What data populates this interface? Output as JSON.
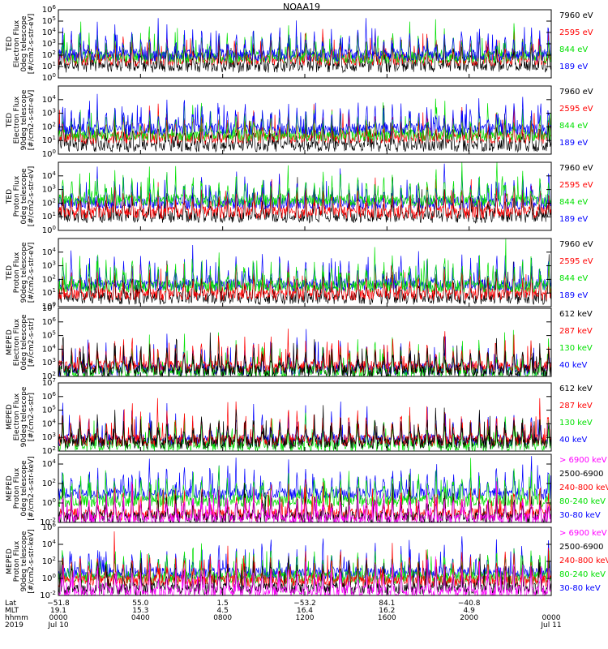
{
  "title": "NOAA19",
  "colors": {
    "black": "#000000",
    "red": "#ff0000",
    "green": "#00e000",
    "blue": "#0000ff",
    "magenta": "#ff00ff"
  },
  "chart_data": [
    {
      "type": "line",
      "ytype": "log",
      "ylim_exp": [
        0,
        6
      ],
      "tick_labels": [
        "10^0",
        "10^1",
        "10^2",
        "10^3",
        "10^4",
        "10^5",
        "10^6"
      ],
      "ylabel_lines": [
        "TED",
        "Electron Flux",
        "0deg telescope",
        "[#/cm2-s-str-eV]"
      ],
      "series": [
        {
          "name": "7960 eV",
          "color": "#000000",
          "base_exp": 1.0,
          "seed": 11
        },
        {
          "name": "2595 eV",
          "color": "#ff0000",
          "base_exp": 1.6,
          "seed": 12
        },
        {
          "name": "844 eV",
          "color": "#00e000",
          "base_exp": 1.8,
          "seed": 13
        },
        {
          "name": "189 eV",
          "color": "#0000ff",
          "base_exp": 2.0,
          "seed": 14
        }
      ]
    },
    {
      "type": "line",
      "ytype": "log",
      "ylim_exp": [
        0,
        5
      ],
      "tick_labels": [
        "10^0",
        "10^1",
        "10^2",
        "10^3",
        "10^4"
      ],
      "ylabel_lines": [
        "TED",
        "Electron Flux",
        "90deg telescope",
        "[#/cm2-s-str-eV]"
      ],
      "series": [
        {
          "name": "7960 eV",
          "color": "#000000",
          "base_exp": 0.6,
          "seed": 21
        },
        {
          "name": "2595 eV",
          "color": "#ff0000",
          "base_exp": 1.2,
          "seed": 22
        },
        {
          "name": "844 eV",
          "color": "#00e000",
          "base_exp": 1.4,
          "seed": 23
        },
        {
          "name": "189 eV",
          "color": "#0000ff",
          "base_exp": 1.8,
          "seed": 24
        }
      ]
    },
    {
      "type": "line",
      "ytype": "log",
      "ylim_exp": [
        0,
        5
      ],
      "tick_labels": [
        "10^0",
        "10^1",
        "10^2",
        "10^3",
        "10^4"
      ],
      "ylabel_lines": [
        "TED",
        "Proton Flux",
        "0deg telescope",
        "[#/cm2-s-str-eV]"
      ],
      "series": [
        {
          "name": "7960 eV",
          "color": "#000000",
          "base_exp": 1.0,
          "seed": 31
        },
        {
          "name": "2595 eV",
          "color": "#ff0000",
          "base_exp": 1.3,
          "seed": 32
        },
        {
          "name": "189 eV",
          "color": "#0000ff",
          "base_exp": 2.0,
          "seed": 34
        },
        {
          "name": "844 eV",
          "color": "#00e000",
          "base_exp": 2.2,
          "seed": 33
        }
      ]
    },
    {
      "type": "line",
      "ytype": "log",
      "ylim_exp": [
        0,
        5
      ],
      "tick_labels": [
        "10^0",
        "10^1",
        "10^2",
        "10^3",
        "10^4"
      ],
      "ylabel_lines": [
        "TED",
        "Proton Flux",
        "90deg telescope",
        "[#/cm2-s-str-eV]"
      ],
      "series": [
        {
          "name": "7960 eV",
          "color": "#000000",
          "base_exp": 0.6,
          "seed": 41
        },
        {
          "name": "2595 eV",
          "color": "#ff0000",
          "base_exp": 0.9,
          "seed": 42
        },
        {
          "name": "189 eV",
          "color": "#0000ff",
          "base_exp": 1.6,
          "seed": 44
        },
        {
          "name": "844 eV",
          "color": "#00e000",
          "base_exp": 1.5,
          "seed": 43
        }
      ]
    },
    {
      "type": "line",
      "ytype": "log",
      "ylim_exp": [
        2,
        7
      ],
      "tick_labels": [
        "10^2",
        "10^3",
        "10^4",
        "10^5",
        "10^6",
        "10^7"
      ],
      "ylabel_lines": [
        "MEPED",
        "Electron Flux",
        "0deg telescope",
        "[#/cm2-s-str]"
      ],
      "series": [
        {
          "name": "40 keV",
          "color": "#0000ff",
          "base_exp": 2.5,
          "seed": 54
        },
        {
          "name": "130 keV",
          "color": "#00e000",
          "base_exp": 2.3,
          "seed": 53
        },
        {
          "name": "287 keV",
          "color": "#ff0000",
          "base_exp": 2.7,
          "seed": 52
        },
        {
          "name": "612 keV",
          "color": "#000000",
          "base_exp": 2.4,
          "seed": 51
        }
      ]
    },
    {
      "type": "line",
      "ytype": "log",
      "ylim_exp": [
        2,
        7
      ],
      "tick_labels": [
        "10^2",
        "10^3",
        "10^4",
        "10^5",
        "10^6",
        "10^7"
      ],
      "ylabel_lines": [
        "MEPED",
        "Electron Flux",
        "90deg telescope",
        "[#/cm2-s-str]"
      ],
      "series": [
        {
          "name": "40 keV",
          "color": "#0000ff",
          "base_exp": 2.8,
          "seed": 64
        },
        {
          "name": "130 keV",
          "color": "#00e000",
          "base_exp": 2.4,
          "seed": 63
        },
        {
          "name": "287 keV",
          "color": "#ff0000",
          "base_exp": 2.8,
          "seed": 62
        },
        {
          "name": "612 keV",
          "color": "#000000",
          "base_exp": 2.6,
          "seed": 61
        }
      ]
    },
    {
      "type": "line",
      "ytype": "log",
      "ylim_exp": [
        -2,
        5
      ],
      "tick_labels": [
        "10^-2",
        "10^0",
        "10^2",
        "10^4"
      ],
      "tick_exps": [
        -2,
        0,
        2,
        4
      ],
      "ylabel_lines": [
        "MEPED",
        "Proton Flux",
        "0deg telescope",
        "[#/cm2-s-str-keV]"
      ],
      "series": [
        {
          "name": "30-80 keV",
          "color": "#0000ff",
          "base_exp": 0.9,
          "seed": 74
        },
        {
          "name": "80-240 keV",
          "color": "#00e000",
          "base_exp": 0.2,
          "seed": 73
        },
        {
          "name": "240-800 keV",
          "color": "#ff0000",
          "base_exp": -1.2,
          "seed": 72
        },
        {
          "name": "2500-6900",
          "color": "#000000",
          "base_exp": -1.5,
          "seed": 71
        },
        {
          "name": "> 6900 keV",
          "color": "#ff00ff",
          "base_exp": -1.7,
          "seed": 75
        }
      ]
    },
    {
      "type": "line",
      "ytype": "log",
      "ylim_exp": [
        -2,
        6
      ],
      "tick_labels": [
        "10^-2",
        "10^0",
        "10^2",
        "10^4",
        "10^6"
      ],
      "tick_exps": [
        -2,
        0,
        2,
        4,
        6
      ],
      "ylabel_lines": [
        "MEPED",
        "Proton Flux",
        "90deg telescope",
        "[#/cm2-s-str-keV]"
      ],
      "series": [
        {
          "name": "30-80 keV",
          "color": "#0000ff",
          "base_exp": 0.6,
          "seed": 84
        },
        {
          "name": "80-240 keV",
          "color": "#00e000",
          "base_exp": 0.1,
          "seed": 83
        },
        {
          "name": "240-800 keV",
          "color": "#ff0000",
          "base_exp": -0.3,
          "seed": 82
        },
        {
          "name": "2500-6900",
          "color": "#000000",
          "base_exp": -1.2,
          "seed": 81
        },
        {
          "name": "> 6900 keV",
          "color": "#ff00ff",
          "base_exp": -1.6,
          "seed": 85
        }
      ]
    }
  ],
  "legend_order": [
    [
      "7960 eV",
      "2595 eV",
      "844 eV",
      "189 eV"
    ],
    [
      "7960 eV",
      "2595 eV",
      "844 eV",
      "189 eV"
    ],
    [
      "7960 eV",
      "2595 eV",
      "844 eV",
      "189 eV"
    ],
    [
      "7960 eV",
      "2595 eV",
      "844 eV",
      "189 eV"
    ],
    [
      "612 keV",
      "287 keV",
      "130 keV",
      "40 keV"
    ],
    [
      "612 keV",
      "287 keV",
      "130 keV",
      "40 keV"
    ],
    [
      "> 6900 keV",
      "2500-6900",
      "240-800 keV",
      "80-240 keV",
      "30-80 keV"
    ],
    [
      "> 6900 keV",
      "2500-6900",
      "240-800 keV",
      "80-240 keV",
      "30-80 keV"
    ]
  ],
  "x_axis": {
    "row_labels": [
      "Lat",
      "MLT",
      "hhmm",
      "2019"
    ],
    "ticks": [
      {
        "hour": 0,
        "lat": "−51.8",
        "mlt": "19.1",
        "hhmm": "0000",
        "date": "Jul 10"
      },
      {
        "hour": 4,
        "lat": "55.0",
        "mlt": "15.3",
        "hhmm": "0400",
        "date": ""
      },
      {
        "hour": 8,
        "lat": "1.5",
        "mlt": "4.5",
        "hhmm": "0800",
        "date": ""
      },
      {
        "hour": 12,
        "lat": "−53.2",
        "mlt": "16.4",
        "hhmm": "1200",
        "date": ""
      },
      {
        "hour": 16,
        "lat": "84.1",
        "mlt": "16.2",
        "hhmm": "1600",
        "date": ""
      },
      {
        "hour": 20,
        "lat": "−40.8",
        "mlt": "4.9",
        "hhmm": "2000",
        "date": ""
      },
      {
        "hour": 24,
        "lat": "",
        "mlt": "",
        "hhmm": "0000",
        "date": "Jul 11"
      }
    ],
    "xlim_hours": [
      0,
      24
    ]
  }
}
